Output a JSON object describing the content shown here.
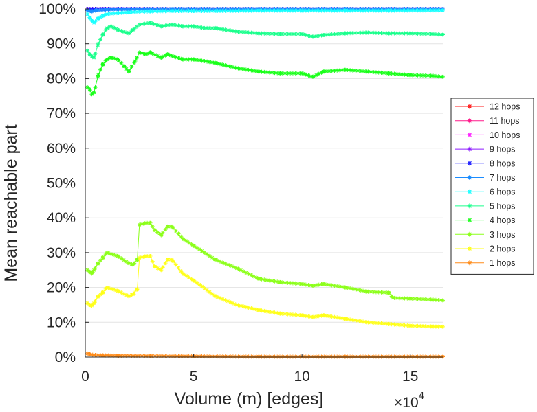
{
  "chart_data": {
    "type": "line",
    "title": "",
    "xlabel": "Volume (m) [edges]",
    "ylabel": "Mean reachable part",
    "x_multiplier": {
      "base": "×10",
      "exponent": "4"
    },
    "xlim": [
      0,
      16.5
    ],
    "ylim": [
      0,
      100
    ],
    "x_scale_note": "x values in units of 10^4 edges",
    "xticks": [
      0,
      5,
      10,
      15
    ],
    "xtick_labels": [
      "0",
      "5",
      "10",
      "15"
    ],
    "yticks": [
      0,
      10,
      20,
      30,
      40,
      50,
      60,
      70,
      80,
      90,
      100
    ],
    "ytick_labels": [
      "0%",
      "10%",
      "20%",
      "30%",
      "40%",
      "50%",
      "60%",
      "70%",
      "80%",
      "90%",
      "100%"
    ],
    "grid": true,
    "legend_position": "right",
    "series": [
      {
        "name": "12 hops",
        "color": "#ff1a1a",
        "x": [
          0.1,
          16.5
        ],
        "y": [
          100,
          100
        ]
      },
      {
        "name": "11 hops",
        "color": "#ff1a8c",
        "x": [
          0.1,
          16.5
        ],
        "y": [
          100,
          100
        ]
      },
      {
        "name": "10 hops",
        "color": "#ff1aff",
        "x": [
          0.1,
          16.5
        ],
        "y": [
          100,
          100
        ]
      },
      {
        "name": "9 hops",
        "color": "#8c1aff",
        "x": [
          0.1,
          16.5
        ],
        "y": [
          100,
          100
        ]
      },
      {
        "name": "8 hops",
        "color": "#1a1aff",
        "x": [
          0.1,
          16.5
        ],
        "y": [
          100,
          100
        ]
      },
      {
        "name": "7 hops",
        "color": "#1a8cff",
        "x": [
          0.1,
          0.3,
          0.5,
          1,
          2,
          4,
          8,
          12,
          16.5
        ],
        "y": [
          99.5,
          99.3,
          99.6,
          99.8,
          99.9,
          100,
          100,
          100,
          100
        ]
      },
      {
        "name": "6 hops",
        "color": "#1affff",
        "x": [
          0.1,
          0.2,
          0.3,
          0.4,
          0.6,
          0.8,
          1.0,
          1.5,
          2.0,
          2.5,
          3.0,
          4.0,
          5.0,
          6.0,
          8.0,
          10.0,
          12.0,
          14.0,
          16.5
        ],
        "y": [
          98.5,
          97.5,
          96.8,
          96.0,
          97.3,
          98.0,
          98.5,
          98.8,
          99.0,
          99.2,
          99.3,
          99.4,
          99.4,
          99.4,
          99.5,
          99.5,
          99.5,
          99.5,
          99.6
        ]
      },
      {
        "name": "5 hops",
        "color": "#1aff8c",
        "x": [
          0.1,
          0.2,
          0.3,
          0.4,
          0.6,
          0.8,
          1.0,
          1.2,
          1.5,
          2.0,
          2.2,
          2.5,
          3.0,
          3.5,
          4.0,
          4.5,
          5.0,
          5.5,
          6.0,
          7.0,
          8.0,
          9.0,
          10.0,
          10.5,
          11.0,
          12.0,
          13.0,
          14.0,
          15.0,
          16.0,
          16.5
        ],
        "y": [
          88.0,
          87.0,
          86.5,
          86.0,
          90.0,
          92.5,
          94.5,
          95.0,
          94.0,
          93.0,
          94.0,
          95.5,
          96.0,
          95.0,
          95.5,
          95.0,
          95.0,
          94.5,
          94.5,
          93.5,
          93.0,
          92.8,
          92.8,
          92.0,
          92.5,
          93.0,
          93.2,
          93.0,
          93.0,
          92.8,
          92.6
        ]
      },
      {
        "name": "4 hops",
        "color": "#1aff1a",
        "x": [
          0.1,
          0.2,
          0.3,
          0.4,
          0.6,
          0.8,
          1.0,
          1.2,
          1.5,
          1.8,
          2.0,
          2.3,
          2.5,
          2.8,
          3.0,
          3.5,
          3.8,
          4.0,
          4.5,
          5.0,
          5.5,
          6.0,
          7.0,
          8.0,
          9.0,
          10.0,
          10.5,
          11.0,
          12.0,
          13.0,
          14.0,
          15.0,
          16.0,
          16.5
        ],
        "y": [
          77.5,
          77.0,
          75.5,
          76.0,
          81.0,
          84.0,
          85.5,
          86.0,
          85.5,
          83.5,
          82.0,
          85.0,
          87.5,
          87.0,
          87.5,
          86.0,
          87.0,
          86.5,
          85.5,
          85.5,
          85.0,
          84.5,
          83.0,
          82.0,
          81.5,
          81.5,
          80.5,
          82.0,
          82.5,
          82.0,
          81.5,
          81.0,
          80.8,
          80.5
        ]
      },
      {
        "name": "3 hops",
        "color": "#8cff1a",
        "x": [
          0.1,
          0.2,
          0.3,
          0.4,
          0.6,
          0.8,
          1.0,
          1.5,
          2.0,
          2.2,
          2.4,
          2.5,
          2.8,
          3.0,
          3.2,
          3.5,
          3.8,
          4.0,
          4.5,
          5.0,
          6.0,
          7.0,
          8.0,
          9.0,
          10.0,
          10.5,
          11.0,
          12.0,
          13.0,
          14.0,
          14.2,
          15.0,
          16.0,
          16.5
        ],
        "y": [
          25.0,
          24.5,
          24.0,
          25.0,
          27.0,
          28.5,
          30.0,
          29.0,
          27.0,
          26.5,
          28.0,
          38.0,
          38.5,
          38.5,
          36.5,
          35.0,
          37.5,
          37.5,
          34.0,
          32.0,
          28.0,
          25.5,
          22.5,
          21.5,
          21.0,
          20.5,
          21.0,
          20.0,
          18.8,
          18.5,
          17.0,
          16.8,
          16.5,
          16.3
        ]
      },
      {
        "name": "2 hops",
        "color": "#ffff1a",
        "x": [
          0.1,
          0.2,
          0.3,
          0.4,
          0.6,
          0.8,
          1.0,
          1.5,
          2.0,
          2.2,
          2.4,
          2.5,
          2.8,
          3.0,
          3.2,
          3.5,
          3.8,
          4.0,
          4.5,
          5.0,
          6.0,
          7.0,
          8.0,
          9.0,
          10.0,
          10.5,
          11.0,
          12.0,
          13.0,
          14.0,
          15.0,
          16.0,
          16.5
        ],
        "y": [
          15.5,
          15.0,
          14.8,
          15.5,
          17.5,
          18.5,
          20.0,
          19.0,
          17.5,
          18.0,
          19.5,
          28.5,
          29.0,
          29.0,
          26.0,
          25.0,
          28.0,
          28.0,
          24.0,
          22.0,
          17.5,
          15.0,
          13.5,
          12.5,
          12.0,
          11.5,
          12.0,
          11.0,
          10.0,
          9.5,
          9.0,
          8.8,
          8.7
        ]
      },
      {
        "name": "1 hops",
        "color": "#ff8c1a",
        "x": [
          0.1,
          0.2,
          0.4,
          0.8,
          1.5,
          3.0,
          5.0,
          8.0,
          12.0,
          16.5
        ],
        "y": [
          1.0,
          0.8,
          0.6,
          0.5,
          0.4,
          0.3,
          0.2,
          0.1,
          0.1,
          0.1
        ]
      }
    ]
  }
}
